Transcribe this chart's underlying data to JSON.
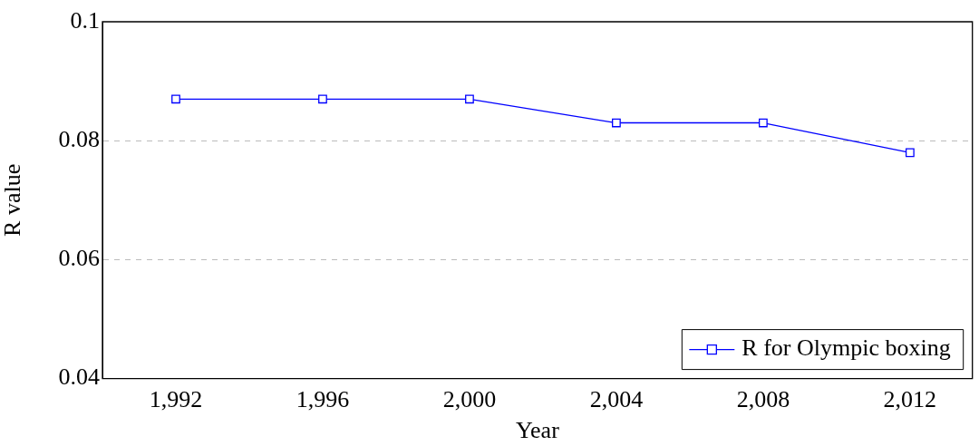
{
  "chart_data": {
    "type": "line",
    "xlabel": "Year",
    "ylabel": "R value",
    "x": [
      1992,
      1996,
      2000,
      2004,
      2008,
      2012
    ],
    "series": [
      {
        "name": "R for Olympic boxing",
        "color": "#0000ff",
        "values": [
          0.087,
          0.087,
          0.087,
          0.083,
          0.083,
          0.078
        ]
      }
    ],
    "xlim": [
      1990,
      2013.7
    ],
    "xticks": [
      {
        "value": 1992,
        "label": "1,992"
      },
      {
        "value": 1996,
        "label": "1,996"
      },
      {
        "value": 2000,
        "label": "2,000"
      },
      {
        "value": 2004,
        "label": "2,004"
      },
      {
        "value": 2008,
        "label": "2,008"
      },
      {
        "value": 2012,
        "label": "2,012"
      }
    ],
    "ylim": [
      0.04,
      0.1
    ],
    "yticks": [
      0.04,
      0.06,
      0.08,
      0.1
    ],
    "grid": "y",
    "legend": "bottom right",
    "marker": "square",
    "line_style": "solid"
  }
}
